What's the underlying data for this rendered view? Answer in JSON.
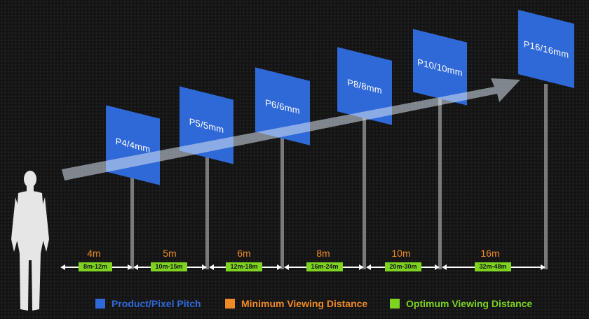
{
  "signs": [
    {
      "label": "P4/4mm"
    },
    {
      "label": "P5/5mm"
    },
    {
      "label": "P6/6mm"
    },
    {
      "label": "P8/8mm"
    },
    {
      "label": "P10/10mm"
    },
    {
      "label": "P16/16mm"
    }
  ],
  "distances": [
    {
      "min": "4m",
      "optimum": "8m-12m"
    },
    {
      "min": "5m",
      "optimum": "10m-15m"
    },
    {
      "min": "6m",
      "optimum": "12m-18m"
    },
    {
      "min": "8m",
      "optimum": "16m-24m"
    },
    {
      "min": "10m",
      "optimum": "20m-30m"
    },
    {
      "min": "16m",
      "optimum": "32m-48m"
    }
  ],
  "legend": [
    {
      "label": "Product/Pixel Pitch",
      "color": "#2f69d8",
      "text_color": "#2f69d8"
    },
    {
      "label": "Minimum Viewing Distance",
      "color": "#f08a26",
      "text_color": "#f08a26"
    },
    {
      "label": "Optimum Viewing Distance",
      "color": "#7ed321",
      "text_color": "#7ed321"
    }
  ],
  "colors": {
    "accent_blue": "#2f69d8",
    "min_orange": "#f08a26",
    "opt_green": "#7ed321"
  }
}
